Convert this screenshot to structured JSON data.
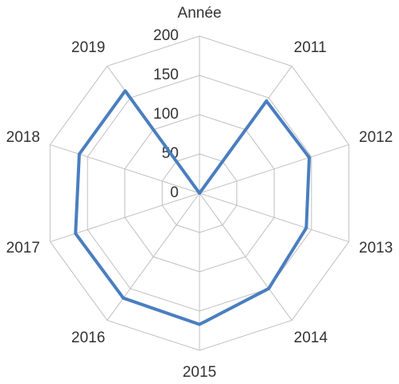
{
  "chart_data": {
    "type": "radar",
    "categories": [
      "Année",
      "2011",
      "2012",
      "2013",
      "2014",
      "2015",
      "2016",
      "2017",
      "2018",
      "2019"
    ],
    "series": [
      {
        "color": "#4a7ebf",
        "values": [
          0,
          145,
          147,
          143,
          150,
          167,
          165,
          166,
          161,
          161
        ]
      }
    ],
    "ylim": [
      0,
      200
    ],
    "yticks": [
      0,
      50,
      100,
      150,
      200
    ],
    "grid": true
  }
}
